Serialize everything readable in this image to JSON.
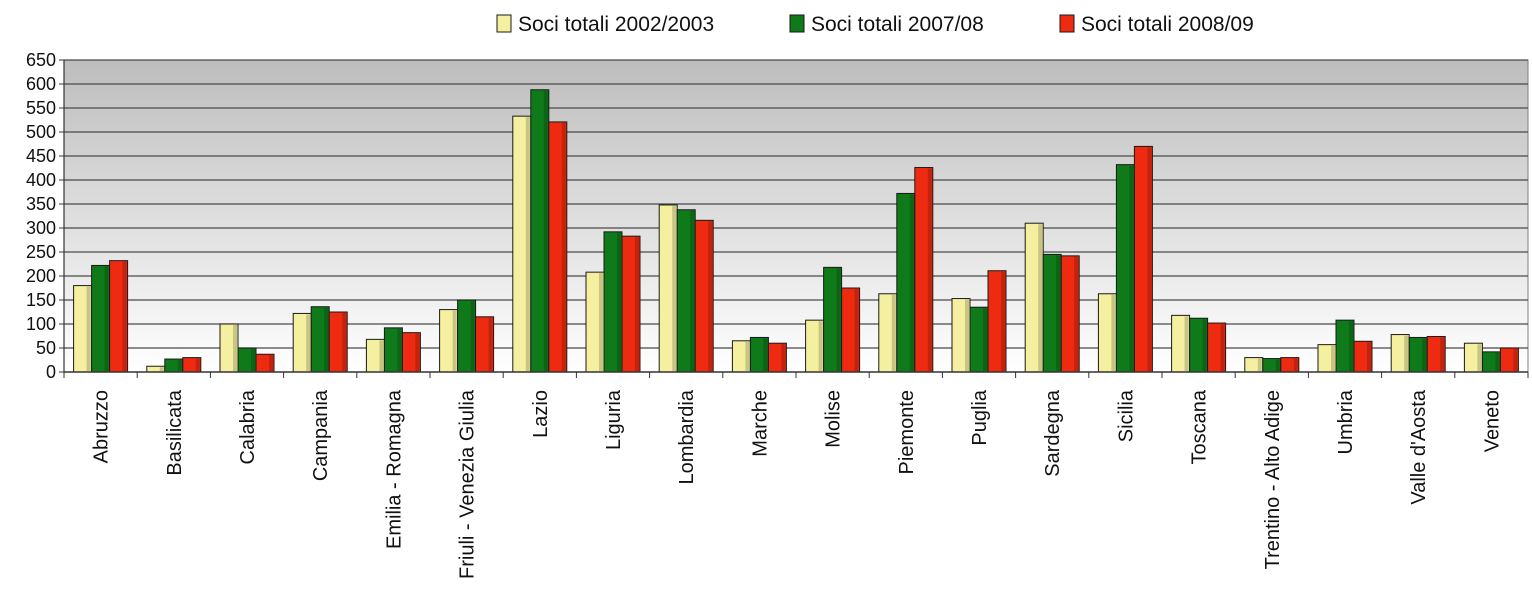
{
  "chart_data": {
    "type": "bar",
    "categories": [
      "Abruzzo",
      "Basilicata",
      "Calabria",
      "Campania",
      "Emilia - Romagna",
      "Friuli - Venezia Giulia",
      "Lazio",
      "Liguria",
      "Lombardia",
      "Marche",
      "Molise",
      "Piemonte",
      "Puglia",
      "Sardegna",
      "Sicilia",
      "Toscana",
      "Trentino - Alto Adige",
      "Umbria",
      "Valle d'Aosta",
      "Veneto"
    ],
    "series": [
      {
        "name": "Soci totali 2002/2003",
        "color": "#f5f0a0",
        "values": [
          180,
          12,
          100,
          122,
          68,
          130,
          533,
          208,
          348,
          65,
          108,
          163,
          153,
          310,
          163,
          118,
          30,
          57,
          78,
          60
        ]
      },
      {
        "name": "Soci totali 2007/08",
        "color": "#0f7a1a",
        "values": [
          222,
          27,
          50,
          136,
          92,
          150,
          588,
          292,
          338,
          72,
          218,
          372,
          135,
          245,
          432,
          112,
          28,
          108,
          72,
          42
        ]
      },
      {
        "name": "Soci totali 2008/09",
        "color": "#ee2a10",
        "values": [
          232,
          30,
          37,
          125,
          82,
          115,
          521,
          283,
          316,
          60,
          175,
          426,
          211,
          242,
          470,
          102,
          30,
          64,
          74,
          50
        ]
      }
    ],
    "title": "",
    "xlabel": "",
    "ylabel": "",
    "ylim": [
      0,
      650
    ],
    "yticks": [
      0,
      50,
      100,
      150,
      200,
      250,
      300,
      350,
      400,
      450,
      500,
      550,
      600,
      650
    ],
    "grid": true,
    "legend_position": "top"
  }
}
